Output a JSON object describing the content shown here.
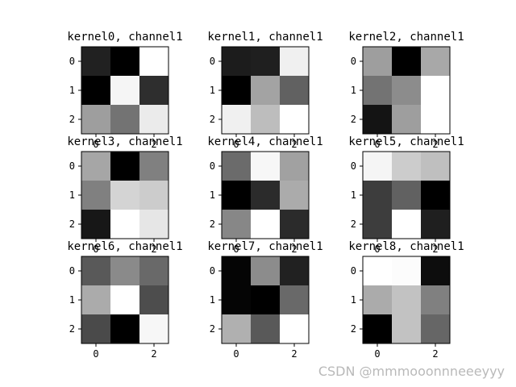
{
  "watermark": "CSDN @mmmooonnneeeyyy",
  "chart_data": [
    {
      "type": "heatmap",
      "title": "kernel0, channel1",
      "colormap": "gray",
      "x_ticks": [
        0,
        2
      ],
      "y_ticks": [
        0,
        1,
        2
      ],
      "values": [
        [
          0.13,
          0.0,
          1.0
        ],
        [
          0.0,
          0.96,
          0.18
        ],
        [
          0.62,
          0.45,
          0.92
        ]
      ]
    },
    {
      "type": "heatmap",
      "title": "kernel1, channel1",
      "colormap": "gray",
      "x_ticks": [
        0,
        2
      ],
      "y_ticks": [
        0,
        1,
        2
      ],
      "values": [
        [
          0.11,
          0.12,
          0.94
        ],
        [
          0.0,
          0.64,
          0.38
        ],
        [
          0.94,
          0.74,
          1.0
        ]
      ]
    },
    {
      "type": "heatmap",
      "title": "kernel2, channel1",
      "colormap": "gray",
      "x_ticks": [
        0,
        2
      ],
      "y_ticks": [
        0,
        1,
        2
      ],
      "values": [
        [
          0.62,
          0.0,
          0.66
        ],
        [
          0.45,
          0.55,
          1.0
        ],
        [
          0.08,
          0.62,
          1.0
        ]
      ]
    },
    {
      "type": "heatmap",
      "title": "kernel3, channel1",
      "colormap": "gray",
      "x_ticks": [
        0,
        2
      ],
      "y_ticks": [
        0,
        1,
        2
      ],
      "values": [
        [
          0.65,
          0.0,
          0.5
        ],
        [
          0.5,
          0.83,
          0.8
        ],
        [
          0.09,
          1.0,
          0.9
        ]
      ]
    },
    {
      "type": "heatmap",
      "title": "kernel4, channel1",
      "colormap": "gray",
      "x_ticks": [
        0,
        2
      ],
      "y_ticks": [
        0,
        1,
        2
      ],
      "values": [
        [
          0.42,
          0.97,
          0.63
        ],
        [
          0.0,
          0.17,
          0.67
        ],
        [
          0.53,
          1.0,
          0.17
        ]
      ]
    },
    {
      "type": "heatmap",
      "title": "kernel5, channel1",
      "colormap": "gray",
      "x_ticks": [
        0,
        2
      ],
      "y_ticks": [
        0,
        1,
        2
      ],
      "values": [
        [
          0.96,
          0.8,
          0.75
        ],
        [
          0.24,
          0.38,
          0.0
        ],
        [
          0.24,
          1.0,
          0.12
        ]
      ]
    },
    {
      "type": "heatmap",
      "title": "kernel6, channel1",
      "colormap": "gray",
      "x_ticks": [
        0,
        2
      ],
      "y_ticks": [
        0,
        1,
        2
      ],
      "values": [
        [
          0.35,
          0.54,
          0.41
        ],
        [
          0.67,
          1.0,
          0.3
        ],
        [
          0.29,
          0.0,
          0.97
        ]
      ]
    },
    {
      "type": "heatmap",
      "title": "kernel7, channel1",
      "colormap": "gray",
      "x_ticks": [
        0,
        2
      ],
      "y_ticks": [
        0,
        1,
        2
      ],
      "values": [
        [
          0.02,
          0.55,
          0.13
        ],
        [
          0.02,
          0.0,
          0.41
        ],
        [
          0.69,
          0.35,
          1.0
        ]
      ]
    },
    {
      "type": "heatmap",
      "title": "kernel8, channel1",
      "colormap": "gray",
      "x_ticks": [
        0,
        2
      ],
      "y_ticks": [
        0,
        1,
        2
      ],
      "values": [
        [
          1.0,
          0.99,
          0.05
        ],
        [
          0.67,
          0.76,
          0.5
        ],
        [
          0.0,
          0.76,
          0.4
        ]
      ]
    }
  ]
}
